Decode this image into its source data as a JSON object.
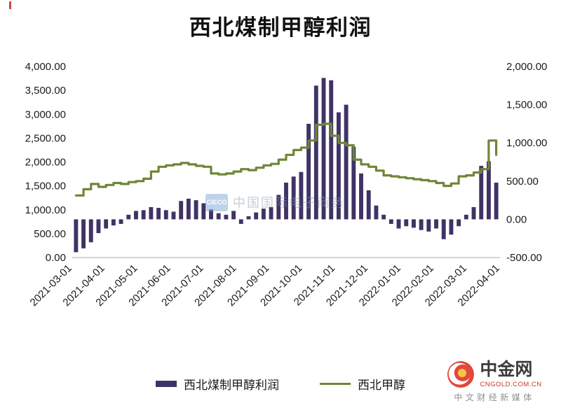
{
  "title": "西北煤制甲醇利润",
  "watermark": {
    "logo_text": "CIECO",
    "text": "中国国际电子商务"
  },
  "branding": {
    "name": "中金网",
    "domain": "CNGOLD.COM.CN",
    "tagline": "中文财经新媒体"
  },
  "colors": {
    "bar": "#3f3366",
    "line": "#6f8637",
    "axis_text": "#1a1a1a",
    "title_text": "#111111",
    "watermark_box": "#7fa8d9",
    "watermark_text": "#8fa0ad",
    "brand_red": "#e2483d",
    "brand_yellow": "#f6c53f",
    "brand_name": "#3b3b3b",
    "brand_domain": "#c23b2e",
    "brand_tagline": "#8f8f8f",
    "corner_red": "#cc2222"
  },
  "chart_data": {
    "type": "bar+line",
    "title": "西北煤制甲醇利润",
    "legend_position": "bottom",
    "grid": false,
    "x_tick_labels": [
      "2021-03-01",
      "2021-04-01",
      "2021-05-01",
      "2021-06-01",
      "2021-07-01",
      "2021-08-01",
      "2021-09-01",
      "2021-10-01",
      "2021-11-01",
      "2021-12-01",
      "2022-01-01",
      "2022-02-01",
      "2022-03-01",
      "2022-04-01"
    ],
    "left_axis": {
      "range": [
        0,
        4000
      ],
      "ticks": [
        "0.00",
        "500.00",
        "1,000.00",
        "1,500.00",
        "2,000.00",
        "2,500.00",
        "3,000.00",
        "3,500.00",
        "4,000.00"
      ]
    },
    "right_axis": {
      "range": [
        -500,
        2000
      ],
      "ticks": [
        "-500.00",
        "0.00",
        "500.00",
        "1,000.00",
        "1,500.00",
        "2,000.00"
      ]
    },
    "x": [
      "2021-03-01",
      "2021-03-08",
      "2021-03-15",
      "2021-03-22",
      "2021-03-29",
      "2021-04-05",
      "2021-04-12",
      "2021-04-19",
      "2021-04-26",
      "2021-05-03",
      "2021-05-10",
      "2021-05-17",
      "2021-05-24",
      "2021-05-31",
      "2021-06-07",
      "2021-06-14",
      "2021-06-21",
      "2021-06-28",
      "2021-07-05",
      "2021-07-12",
      "2021-07-19",
      "2021-07-26",
      "2021-08-02",
      "2021-08-09",
      "2021-08-16",
      "2021-08-23",
      "2021-08-30",
      "2021-09-06",
      "2021-09-13",
      "2021-09-20",
      "2021-09-27",
      "2021-10-04",
      "2021-10-11",
      "2021-10-18",
      "2021-10-25",
      "2021-11-01",
      "2021-11-08",
      "2021-11-15",
      "2021-11-22",
      "2021-11-29",
      "2021-12-06",
      "2021-12-13",
      "2021-12-20",
      "2021-12-27",
      "2022-01-03",
      "2022-01-10",
      "2022-01-17",
      "2022-01-24",
      "2022-01-31",
      "2022-02-07",
      "2022-02-14",
      "2022-02-21",
      "2022-02-28",
      "2022-03-07",
      "2022-03-14",
      "2022-03-21",
      "2022-03-28"
    ],
    "series": [
      {
        "name": "西北煤制甲醇利润",
        "type": "bar",
        "axis": "right",
        "values": [
          -430,
          -380,
          -300,
          -180,
          -120,
          -80,
          -60,
          60,
          110,
          120,
          160,
          150,
          120,
          100,
          240,
          270,
          250,
          210,
          130,
          80,
          60,
          110,
          -60,
          40,
          90,
          140,
          160,
          320,
          480,
          560,
          620,
          1250,
          1750,
          1850,
          1820,
          1400,
          1500,
          950,
          600,
          380,
          180,
          60,
          -60,
          -120,
          -90,
          -110,
          -140,
          -160,
          -120,
          -260,
          -200,
          -90,
          60,
          160,
          700,
          760,
          480
        ]
      },
      {
        "name": "西北甲醇",
        "type": "line",
        "axis": "left",
        "values": [
          1300,
          1430,
          1540,
          1480,
          1520,
          1560,
          1540,
          1580,
          1600,
          1650,
          1800,
          1900,
          1930,
          1950,
          1980,
          1950,
          1920,
          1900,
          1760,
          1740,
          1760,
          1800,
          1850,
          1830,
          1880,
          1930,
          1960,
          2050,
          2150,
          2250,
          2300,
          2450,
          2780,
          2800,
          2550,
          2400,
          2350,
          2050,
          1950,
          1900,
          1820,
          1720,
          1700,
          1680,
          1660,
          1640,
          1620,
          1600,
          1560,
          1500,
          1550,
          1700,
          1720,
          1780,
          1850,
          2450,
          2150
        ]
      }
    ]
  }
}
